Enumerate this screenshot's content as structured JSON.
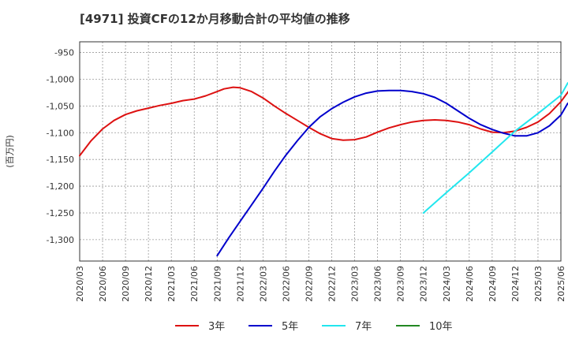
{
  "chart_data": {
    "type": "line",
    "title": "[4971]  投資CFの12か月移動合計の平均値の推移",
    "ylabel": "(百万円)",
    "xlabel": "",
    "ylim": [
      -1340,
      -930
    ],
    "yticks": [
      -950,
      -1000,
      -1050,
      -1100,
      -1150,
      -1200,
      -1250,
      -1300
    ],
    "ytick_labels": [
      "-950",
      "-1,000",
      "-1,050",
      "-1,100",
      "-1,150",
      "-1,200",
      "-1,250",
      "-1,300"
    ],
    "xtick_labels": [
      "2020/03",
      "2020/06",
      "2020/09",
      "2020/12",
      "2021/03",
      "2021/06",
      "2021/09",
      "2021/12",
      "2022/03",
      "2022/06",
      "2022/09",
      "2022/12",
      "2023/03",
      "2023/06",
      "2023/09",
      "2023/12",
      "2024/03",
      "2024/06",
      "2024/09",
      "2024/12",
      "2025/03",
      "2025/06"
    ],
    "x_unit": "quarter index from 2020/03",
    "grid": true,
    "legend_position": "bottom",
    "series": [
      {
        "name": "3年",
        "color": "#dd1111",
        "points": [
          [
            0,
            -1143
          ],
          [
            0.5,
            -1115
          ],
          [
            1,
            -1093
          ],
          [
            1.5,
            -1077
          ],
          [
            2,
            -1066
          ],
          [
            2.5,
            -1059
          ],
          [
            3,
            -1054
          ],
          [
            3.5,
            -1049
          ],
          [
            4,
            -1045
          ],
          [
            4.5,
            -1040
          ],
          [
            5,
            -1037
          ],
          [
            5.5,
            -1031
          ],
          [
            6,
            -1023
          ],
          [
            6.3,
            -1018
          ],
          [
            6.7,
            -1015
          ],
          [
            7,
            -1016
          ],
          [
            7.5,
            -1023
          ],
          [
            8,
            -1035
          ],
          [
            8.5,
            -1050
          ],
          [
            9,
            -1064
          ],
          [
            9.5,
            -1077
          ],
          [
            10,
            -1090
          ],
          [
            10.5,
            -1102
          ],
          [
            11,
            -1111
          ],
          [
            11.5,
            -1114
          ],
          [
            12,
            -1113
          ],
          [
            12.5,
            -1108
          ],
          [
            13,
            -1099
          ],
          [
            13.5,
            -1091
          ],
          [
            14,
            -1085
          ],
          [
            14.5,
            -1080
          ],
          [
            15,
            -1077
          ],
          [
            15.5,
            -1076
          ],
          [
            16,
            -1077
          ],
          [
            16.5,
            -1080
          ],
          [
            17,
            -1085
          ],
          [
            17.5,
            -1093
          ],
          [
            18,
            -1099
          ],
          [
            18.5,
            -1100
          ],
          [
            19,
            -1097
          ],
          [
            19.5,
            -1090
          ],
          [
            20,
            -1080
          ],
          [
            20.5,
            -1064
          ],
          [
            21,
            -1042
          ],
          [
            21.5,
            -1013
          ],
          [
            22,
            -978
          ],
          [
            22.3,
            -943
          ]
        ]
      },
      {
        "name": "5年",
        "color": "#0000cc",
        "points": [
          [
            6,
            -1330
          ],
          [
            6.5,
            -1297
          ],
          [
            7,
            -1266
          ],
          [
            7.5,
            -1235
          ],
          [
            8,
            -1204
          ],
          [
            8.5,
            -1172
          ],
          [
            9,
            -1142
          ],
          [
            9.5,
            -1115
          ],
          [
            10,
            -1090
          ],
          [
            10.5,
            -1070
          ],
          [
            11,
            -1055
          ],
          [
            11.5,
            -1043
          ],
          [
            12,
            -1033
          ],
          [
            12.5,
            -1026
          ],
          [
            13,
            -1022
          ],
          [
            13.5,
            -1021
          ],
          [
            14,
            -1021
          ],
          [
            14.5,
            -1023
          ],
          [
            15,
            -1027
          ],
          [
            15.5,
            -1034
          ],
          [
            16,
            -1045
          ],
          [
            16.5,
            -1059
          ],
          [
            17,
            -1073
          ],
          [
            17.5,
            -1085
          ],
          [
            18,
            -1094
          ],
          [
            18.5,
            -1101
          ],
          [
            19,
            -1106
          ],
          [
            19.5,
            -1106
          ],
          [
            20,
            -1100
          ],
          [
            20.5,
            -1087
          ],
          [
            21,
            -1067
          ],
          [
            21.3,
            -1045
          ]
        ]
      },
      {
        "name": "7年",
        "color": "#22e6ee",
        "points": [
          [
            15,
            -1250
          ],
          [
            16,
            -1212
          ],
          [
            17,
            -1175
          ],
          [
            18,
            -1136
          ],
          [
            19,
            -1097
          ],
          [
            20,
            -1064
          ],
          [
            21,
            -1030
          ],
          [
            21.3,
            -1007
          ]
        ]
      },
      {
        "name": "10年",
        "color": "#228822",
        "points": []
      }
    ]
  }
}
